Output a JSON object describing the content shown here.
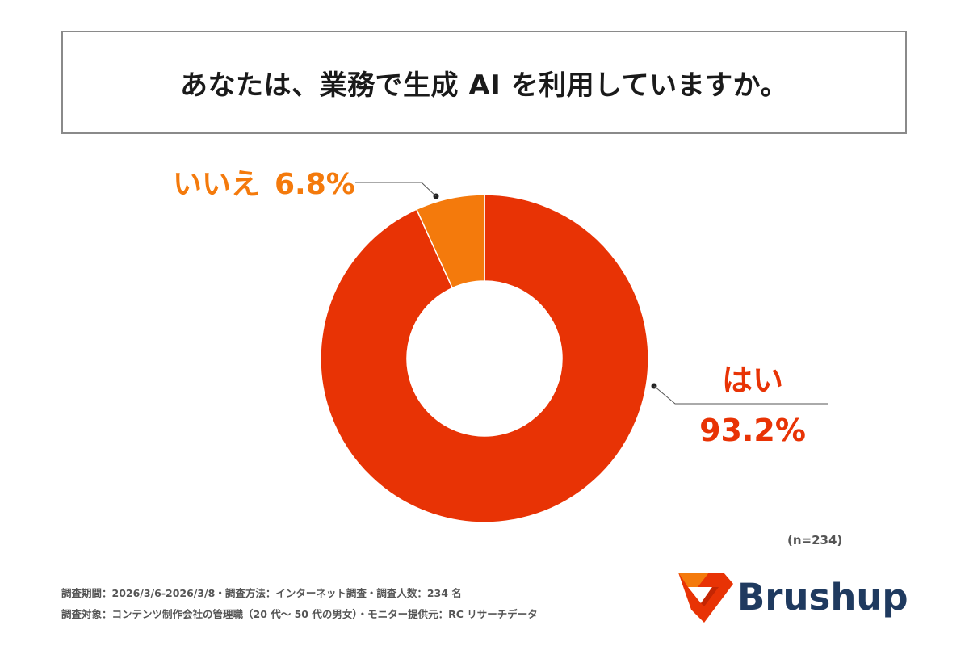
{
  "title": "あなたは、業務で生成 AI を利用していますか。",
  "chart_data": {
    "type": "pie",
    "donut": true,
    "slices": [
      {
        "label": "はい",
        "value": 93.2,
        "value_label": "93.2%",
        "color": "#e83305"
      },
      {
        "label": "いいえ",
        "value": 6.8,
        "value_label": "6.8%",
        "color": "#f47a0c"
      }
    ],
    "legend": "none"
  },
  "sample_size": "(n=234)",
  "footnotes": {
    "line1": "調査期間：2026/3/6-2026/3/8・調査方法：インターネット調査・調査人数：234 名",
    "line2": "調査対象：コンテンツ制作会社の管理職（20 代〜 50 代の男女）・モニター提供元：RC リサーチデータ"
  },
  "logo": {
    "text": "Brushup",
    "icon": "brushup-logo-icon",
    "text_color": "#1f3a5f",
    "icon_colors": [
      "#e83305",
      "#f47a0c"
    ]
  }
}
